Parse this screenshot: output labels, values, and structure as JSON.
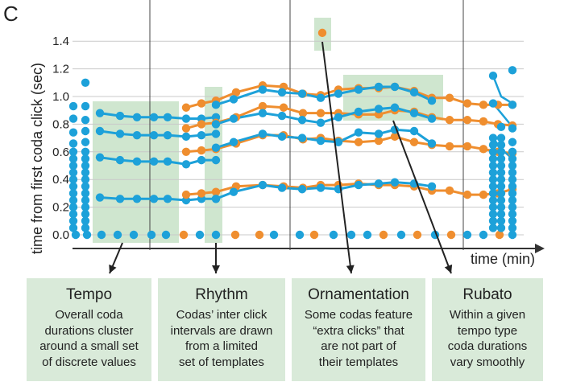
{
  "panel_label": "C",
  "colors": {
    "blue": "#1da1d9",
    "orange": "#ef8e2f",
    "highlight": "#cfe6cf",
    "card": "#d9ead9",
    "axis": "#333333",
    "grid": "#c9c9c9"
  },
  "chart_data": {
    "type": "scatter",
    "xlabel": "time (min)",
    "ylabel": "time from first coda click (sec)",
    "y_ticks": [
      "0.0",
      "0.2",
      "0.4",
      "0.6",
      "0.8",
      "1.0",
      "1.2",
      "1.4"
    ],
    "ylim": [
      -0.05,
      1.58
    ],
    "grid": "horizontal",
    "series": [
      {
        "color": "blue",
        "points": [
          [
            0.0,
            0.0
          ],
          [
            0.2,
            0.0
          ],
          [
            0.4,
            0.0
          ],
          [
            0.6,
            0.0
          ],
          [
            0.8,
            0.0
          ],
          [
            1.0,
            0.0
          ],
          [
            1.2,
            0.0
          ],
          [
            1.4,
            0.0
          ],
          [
            1.6,
            0.0
          ],
          [
            1.8,
            0.0
          ],
          [
            2.0,
            0.0
          ],
          [
            2.2,
            0.0
          ],
          [
            2.4,
            0.0
          ],
          [
            2.6,
            0.0
          ],
          [
            2.8,
            0.0
          ],
          [
            3.0,
            0.0
          ],
          [
            3.2,
            0.0
          ],
          [
            3.4,
            0.0
          ],
          [
            3.6,
            0.0
          ],
          [
            3.8,
            0.0
          ],
          [
            4.0,
            0.0
          ],
          [
            4.2,
            0.0
          ],
          [
            4.4,
            0.0
          ],
          [
            4.6,
            0.0
          ],
          [
            4.8,
            0.0
          ],
          [
            5.0,
            0.0
          ],
          [
            5.2,
            0.0
          ],
          [
            5.4,
            0.0
          ],
          [
            5.6,
            0.0
          ],
          [
            5.8,
            0.0
          ],
          [
            6.0,
            0.0
          ],
          [
            6.2,
            0.0
          ],
          [
            6.4,
            0.0
          ],
          [
            6.6,
            0.0
          ],
          [
            6.8,
            0.0
          ],
          [
            0.0,
            0.05
          ],
          [
            0.0,
            0.1
          ],
          [
            0.0,
            0.15
          ],
          [
            0.0,
            0.2
          ],
          [
            0.0,
            0.25
          ],
          [
            0.0,
            0.3
          ],
          [
            0.0,
            0.35
          ],
          [
            0.0,
            0.4
          ],
          [
            0.0,
            0.45
          ],
          [
            0.0,
            0.5
          ],
          [
            0.0,
            0.55
          ],
          [
            0.0,
            0.6
          ],
          [
            0.0,
            0.65
          ],
          [
            0.0,
            0.7
          ],
          [
            0.0,
            0.75
          ],
          [
            0.0,
            0.8
          ],
          [
            0.0,
            0.85
          ],
          [
            0.0,
            0.9
          ],
          [
            0.0,
            0.95
          ],
          [
            0.0,
            1.0
          ],
          [
            0.0,
            1.1
          ]
        ]
      }
    ],
    "codas": [
      {
        "color": "blue",
        "points": [
          [
            0.5,
            0.0
          ],
          [
            0.5,
            0.27
          ],
          [
            0.5,
            0.56
          ],
          [
            0.5,
            0.75
          ],
          [
            0.5,
            0.88
          ]
        ]
      },
      {
        "color": "blue",
        "points": [
          [
            0.7,
            0.0
          ],
          [
            0.7,
            0.26
          ],
          [
            0.7,
            0.54
          ],
          [
            0.7,
            0.73
          ],
          [
            0.7,
            0.86
          ]
        ]
      },
      {
        "color": "blue",
        "points": [
          [
            0.9,
            0.0
          ],
          [
            0.9,
            0.26
          ],
          [
            0.9,
            0.53
          ],
          [
            0.9,
            0.72
          ],
          [
            0.9,
            0.85
          ]
        ]
      },
      {
        "color": "blue",
        "points": [
          [
            1.1,
            0.0
          ],
          [
            1.1,
            0.26
          ],
          [
            1.1,
            0.53
          ],
          [
            1.1,
            0.72
          ],
          [
            1.1,
            0.85
          ]
        ]
      },
      {
        "color": "blue",
        "points": [
          [
            1.3,
            0.0
          ],
          [
            1.3,
            0.26
          ],
          [
            1.3,
            0.53
          ],
          [
            1.3,
            0.72
          ],
          [
            1.3,
            0.85
          ]
        ]
      },
      {
        "color": "blue",
        "points": [
          [
            1.5,
            0.0
          ],
          [
            1.5,
            0.25
          ],
          [
            1.5,
            0.51
          ],
          [
            1.5,
            0.71
          ],
          [
            1.5,
            0.84
          ]
        ]
      },
      {
        "color": "orange",
        "points": [
          [
            1.7,
            0.0
          ],
          [
            1.7,
            0.29
          ],
          [
            1.7,
            0.59
          ],
          [
            1.7,
            0.77
          ],
          [
            1.7,
            0.92
          ],
          [
            1.7,
            1.07
          ]
        ]
      },
      {
        "color": "orange",
        "points": [
          [
            1.9,
            0.0
          ],
          [
            1.9,
            0.31
          ],
          [
            1.9,
            0.62
          ],
          [
            1.9,
            0.81
          ],
          [
            1.9,
            0.97
          ],
          [
            1.9,
            1.09
          ]
        ]
      },
      {
        "color": "blue",
        "points": [
          [
            2.1,
            0.0
          ],
          [
            2.1,
            0.36
          ],
          [
            2.1,
            0.72
          ],
          [
            2.1,
            0.87
          ],
          [
            2.1,
            1.04
          ]
        ]
      }
    ],
    "annotations": [
      "Tempo",
      "Rhythm",
      "Ornamentation",
      "Rubato"
    ]
  },
  "cards": [
    {
      "title": "Tempo",
      "lines": [
        "Overall coda",
        "durations cluster",
        "around a small set",
        "of discrete values"
      ]
    },
    {
      "title": "Rhythm",
      "lines": [
        "Codas’ inter click",
        "intervals are drawn",
        "from a limited",
        "set of templates"
      ]
    },
    {
      "title": "Ornamentation",
      "lines": [
        "Some codas feature",
        "“extra clicks” that",
        "are not part of",
        "their templates"
      ]
    },
    {
      "title": "Rubato",
      "lines": [
        "Within a given",
        "tempo type",
        "coda durations",
        "vary smoothly"
      ]
    }
  ]
}
